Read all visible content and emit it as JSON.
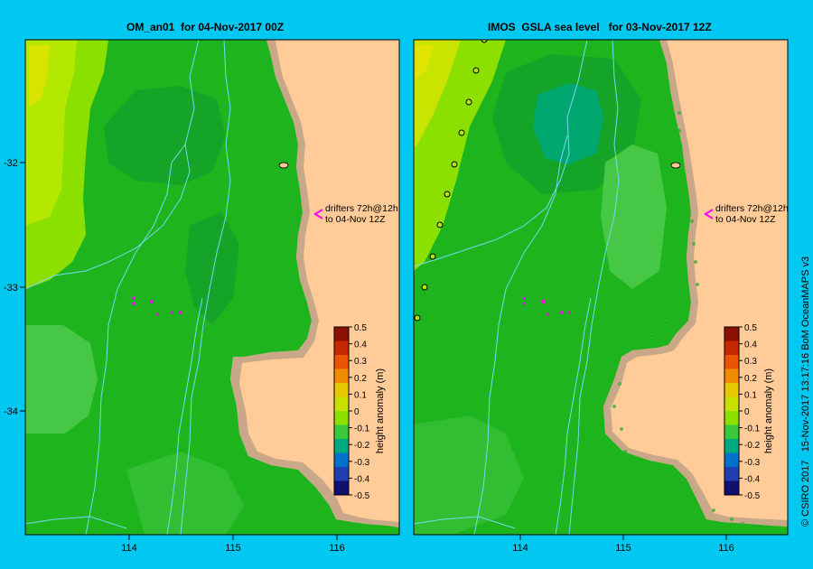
{
  "panels": [
    {
      "title": "OM_an01  for 04-Nov-2017 00Z",
      "annotation": [
        "drifters 72h@12h",
        "to 04-Nov 12Z"
      ],
      "colorbar_label": "height anomaly (m)"
    },
    {
      "title": "IMOS  GSLA sea level   for 03-Nov-2017 12Z",
      "annotation": [
        "drifters 72h@12h",
        "to 04-Nov 12Z"
      ],
      "colorbar_label": "height anomaly (m)"
    }
  ],
  "axes": {
    "lat_ticks": [
      "-32",
      "-33",
      "-34"
    ],
    "lon_ticks": [
      "114",
      "115",
      "116"
    ]
  },
  "colorbar": {
    "ticks": [
      "0.5",
      "0.4",
      "0.3",
      "0.2",
      "0.1",
      "0",
      "-0.1",
      "-0.2",
      "-0.3",
      "-0.4",
      "-0.5"
    ],
    "colors": [
      "#8a1000",
      "#c42800",
      "#e85400",
      "#f08c00",
      "#e8c800",
      "#c8e000",
      "#8ce000",
      "#3cc83c",
      "#00a880",
      "#0070c8",
      "#2040b0",
      "#101070"
    ]
  },
  "credit": "© CSIRO 2017   15-Nov-2017 13:17:16 BoM OceanMAPS v3",
  "colors": {
    "frame": "#00c8f0",
    "land": "#ffcc99",
    "coast": "#c8a888",
    "sea": "#1eb41e",
    "isobath": "#78d8f0"
  }
}
